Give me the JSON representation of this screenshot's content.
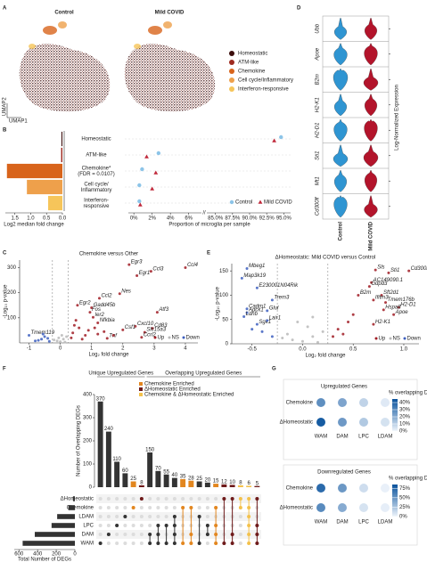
{
  "panels": [
    "A",
    "B",
    "C",
    "D",
    "E",
    "F",
    "G"
  ],
  "chart_data": [
    {
      "type": "umap",
      "titles": [
        "Control",
        "Mild COVID"
      ],
      "axis_labels": [
        "UMAP1",
        "UMAP2"
      ],
      "legend": [
        {
          "name": "Homeostatic",
          "color": "#3b0d0c"
        },
        {
          "name": "ATM-like",
          "color": "#9e2a1f"
        },
        {
          "name": "Chemokine",
          "color": "#d8641b"
        },
        {
          "name": "Cell cycle/Inflammatory",
          "color": "#eea04b"
        },
        {
          "name": "Interferon-responsive",
          "color": "#f6c55a"
        }
      ]
    },
    {
      "type": "hbar",
      "categories": [
        [
          "Homeostatic"
        ],
        [
          "ATM-like"
        ],
        [
          "Chemokine*",
          "(FDR = 0.0107)"
        ],
        [
          "Cell cycle/",
          "Inflammatory"
        ],
        [
          "Interferon-",
          "responsive"
        ]
      ],
      "values": [
        0.03,
        0.04,
        1.75,
        1.12,
        0.45
      ],
      "colors": [
        "#3b0d0c",
        "#9e2a1f",
        "#d8641b",
        "#eea04b",
        "#f6c55a"
      ],
      "label_colors": [
        "#222222",
        "#222222",
        "#d62828",
        "#222222",
        "#222222"
      ],
      "xlim": [
        1.8,
        0
      ],
      "xticks": [
        1.5,
        {
          "value": 1,
          "label": "1.0"
        },
        0.5,
        {
          "value": 0,
          "label": "0.0"
        }
      ],
      "xlabel": "Log2 median fold change"
    },
    {
      "type": "dot",
      "series": [
        {
          "name": "Control",
          "color": "#8cc4e8",
          "marker": "circle",
          "values": [
            94.6,
            2.7,
            0.9,
            0.6,
            0.6
          ]
        },
        {
          "name": "Mild COVID",
          "color": "#c0283a",
          "marker": "triangle",
          "values": [
            93.6,
            1.4,
            2.4,
            2.0,
            0.7
          ]
        }
      ],
      "xlim": [
        -0.6,
        7.2
      ],
      "xticks": [
        {
          "value": 0,
          "label": "0%"
        },
        {
          "value": 2,
          "label": "2%"
        },
        {
          "value": 4,
          "label": "4%"
        },
        {
          "value": 6,
          "label": "6%"
        }
      ],
      "xlim2": [
        84,
        96
      ],
      "xticks2": [
        {
          "value": 85,
          "label": "85.0%"
        },
        {
          "value": 87.5,
          "label": "87.5%"
        },
        {
          "value": 90,
          "label": "90.0%"
        },
        {
          "value": 92.5,
          "label": "92.5%"
        },
        {
          "value": 95,
          "label": "95.0%"
        }
      ],
      "xlabel": "Proportion of microglia per sample"
    },
    {
      "type": "volcano",
      "title": "Chemokine versus Other",
      "xlabel": "Log₂ fold change",
      "ylabel": "-Log₁₀ p-value",
      "xlim": [
        -1.3,
        4.4
      ],
      "xticks": [
        -1,
        0,
        1,
        2,
        3,
        4
      ],
      "ylim": [
        0,
        330
      ],
      "yticks": [
        100,
        200,
        300
      ],
      "fc_cutoffs": [
        -0.25,
        0.25
      ],
      "series": [
        {
          "name": "Up",
          "color": "#a01c24",
          "x": [
            4.0,
            2.9,
            2.2,
            2.45,
            1.9,
            1.25,
            0.55,
            1.0,
            0.95,
            3.1,
            1.05,
            1.2,
            2.4,
            2.0,
            2.95,
            2.7,
            2.6,
            1.5,
            0.4,
            0.6,
            0.8,
            0.5,
            0.9,
            1.2,
            0.35,
            0.7,
            1.4,
            1.7,
            0.45,
            1.1
          ],
          "y": [
            300,
            285,
            312,
            268,
            196,
            178,
            150,
            140,
            122,
            122,
            102,
            80,
            66,
            52,
            58,
            42,
            22,
            18,
            40,
            60,
            30,
            90,
            50,
            35,
            20,
            15,
            45,
            30,
            70,
            60
          ],
          "labels": [
            "Ccl4",
            "Ccl3",
            "Egr3",
            "Egr1",
            "Nes",
            "Ccl2",
            "Egr2",
            "Gadd45b",
            "Fos",
            "Atf3",
            "Ier2",
            "Nfkbia",
            "Cxcl10",
            "Csf1",
            "Cd83",
            "Slc15a3",
            "Ccrl2",
            "Tnf",
            null,
            null,
            null,
            null,
            null,
            null,
            null,
            null,
            null,
            null,
            null,
            null
          ]
        },
        {
          "name": "NS",
          "color": "#b8b8b8",
          "x": [
            0,
            0.1,
            -0.1,
            0.2,
            -0.2,
            0.05,
            0.15,
            -0.05
          ],
          "y": [
            5,
            15,
            8,
            25,
            12,
            30,
            3,
            20
          ],
          "labels": [
            null,
            null,
            null,
            null,
            null,
            null,
            null,
            null
          ]
        },
        {
          "name": "Down",
          "color": "#3d5fbf",
          "x": [
            -1.0,
            -0.6,
            -0.5,
            -0.7,
            -0.4,
            -0.8,
            -0.35,
            -0.55
          ],
          "y": [
            30,
            15,
            25,
            10,
            18,
            8,
            6,
            35
          ],
          "labels": [
            "Tmem119",
            null,
            null,
            null,
            null,
            null,
            null,
            null
          ]
        }
      ]
    },
    {
      "type": "volcano",
      "title": "ΔHomeostatic: Mild COVID versus Control",
      "xlabel": "Log₂ fold change",
      "ylabel": "-Log₁₀ p-value",
      "xlim": [
        -0.7,
        1.15
      ],
      "xticks": [
        -0.5,
        {
          "value": 0,
          "label": "0.0"
        },
        0.5,
        {
          "value": 1,
          "label": "1.0"
        }
      ],
      "ylim": [
        0,
        165
      ],
      "yticks": [
        0,
        50,
        100,
        150
      ],
      "fc_cutoffs": [
        -0.25,
        0.25
      ],
      "series": [
        {
          "name": "Up",
          "color": "#a01c24",
          "x": [
            0.72,
            0.85,
            1.05,
            0.68,
            0.66,
            0.55,
            0.78,
            0.82,
            0.9,
            0.95,
            0.7,
            0.8,
            0.7,
            0.35,
            0.45,
            0.4,
            0.3,
            0.5
          ],
          "y": [
            152,
            146,
            150,
            126,
            118,
            100,
            100,
            85,
            60,
            75,
            40,
            70,
            90,
            30,
            45,
            20,
            15,
            60
          ],
          "labels": [
            "Sls",
            "Sti1",
            "Cd300lf",
            "AC149090.1",
            "Gdpd3",
            "B2m",
            "Sft2d1",
            "Tmem176b",
            "Apoe",
            "H2-D1",
            "H2-K1",
            "Hspa8",
            "Ifitm3",
            null,
            null,
            null,
            null,
            null
          ]
        },
        {
          "name": "NS",
          "color": "#b8b8b8",
          "x": [
            0,
            0.1,
            -0.1,
            0.2,
            -0.2,
            0.05,
            0.15,
            -0.15,
            -0.05,
            0.1
          ],
          "y": [
            5,
            15,
            8,
            25,
            12,
            35,
            3,
            20,
            45,
            55
          ],
          "labels": [
            null,
            null,
            null,
            null,
            null,
            null,
            null,
            null,
            null,
            null
          ]
        },
        {
          "name": "Down",
          "color": "#3d5fbf",
          "x": [
            -0.55,
            -0.6,
            -0.45,
            -0.3,
            -0.55,
            -0.55,
            -0.58,
            -0.45,
            -0.35,
            -0.35,
            -0.4,
            -0.3,
            -0.5
          ],
          "y": [
            155,
            135,
            115,
            90,
            72,
            64,
            56,
            40,
            68,
            48,
            25,
            15,
            30
          ],
          "labels": [
            "Mbeg1",
            "Map3k19",
            "E230001N04Rik",
            "Trem3",
            "Cadm1",
            "Adck1",
            "Ldhb",
            "Sgk1",
            "Glul",
            "Lair1",
            null,
            null,
            null
          ]
        }
      ]
    },
    {
      "type": "violin",
      "genes": [
        "Ubb",
        "Apoe",
        "B2m",
        "H2-K1",
        "H2-D1",
        "Sti1",
        "Mt1",
        "Cd300lf"
      ],
      "groups": [
        "Control",
        "Mild COVID"
      ],
      "colors": [
        "#2f95d2",
        "#b3142b"
      ],
      "ylabel": "Log-Normalized Expression"
    },
    {
      "type": "upset",
      "headers": [
        "Unique Upregulated Genes",
        "Overlapping Upregulated Genes"
      ],
      "legend": [
        {
          "name": "Chemokine Enriched",
          "color": "#e2861f"
        },
        {
          "name": "ΔHomeostatic Enriched",
          "color": "#6e1a1a"
        },
        {
          "name": "Chemokine & ΔHomeostatic Enriched",
          "color": "#f3c14b"
        }
      ],
      "sets": [
        "ΔHomeostatic",
        "Chemokine",
        "LDAM",
        "LPC",
        "DAM",
        "WAM"
      ],
      "set_sizes": [
        20,
        70,
        190,
        250,
        430,
        560
      ],
      "set_xlim": [
        650,
        0
      ],
      "set_xticks": [
        600,
        400,
        200,
        0
      ],
      "set_xlabel": "Total Number of DEGs",
      "values": [
        370,
        240,
        110,
        60,
        25,
        8,
        150,
        70,
        55,
        40,
        35,
        28,
        25,
        20,
        15,
        12,
        10,
        8,
        6,
        5
      ],
      "colors": [
        "#333333",
        "#333333",
        "#333333",
        "#333333",
        "#e2861f",
        "#6e1a1a",
        "#333333",
        "#333333",
        "#333333",
        "#333333",
        "#e2861f",
        "#e2861f",
        "#333333",
        "#333333",
        "#e2861f",
        "#6e1a1a",
        "#6e1a1a",
        "#f3c14b",
        "#f3c14b",
        "#6e1a1a"
      ],
      "combos": [
        [
          5
        ],
        [
          4
        ],
        [
          3
        ],
        [
          2
        ],
        [
          1
        ],
        [
          0
        ],
        [
          4,
          5
        ],
        [
          3,
          4,
          5
        ],
        [
          3,
          5
        ],
        [
          2,
          3,
          4,
          5
        ],
        [
          1,
          5
        ],
        [
          1,
          4,
          5
        ],
        [
          2,
          5
        ],
        [
          3,
          4
        ],
        [
          1,
          3,
          4,
          5
        ],
        [
          0,
          5
        ],
        [
          0,
          4,
          5
        ],
        [
          0,
          1
        ],
        [
          0,
          1,
          2,
          3,
          4,
          5
        ],
        [
          0,
          3,
          4,
          5
        ]
      ],
      "ylim": [
        0,
        400
      ],
      "yticks": [
        0,
        100,
        200,
        300,
        400
      ],
      "ylabel": "Number of Overlapping DEGs"
    },
    {
      "type": "dotmatrix",
      "title": "Upregulated Genes",
      "rows": [
        "Chemokine",
        "ΔHomeostatic"
      ],
      "columns": [
        "WAM",
        "DAM",
        "LPC",
        "LDAM"
      ],
      "values": [
        [
          28,
          22,
          9,
          3
        ],
        [
          42,
          25,
          12,
          5
        ]
      ],
      "legend_title": "% overlapping DEGs",
      "clim": [
        0,
        45
      ],
      "cticks": [
        {
          "value": 0,
          "label": "0%"
        },
        {
          "value": 10,
          "label": "10%"
        },
        {
          "value": 20,
          "label": "20%"
        },
        {
          "value": 30,
          "label": "30%"
        },
        {
          "value": 40,
          "label": "40%"
        }
      ],
      "colors": [
        "#eef4fb",
        "#08519c"
      ]
    },
    {
      "type": "dotmatrix",
      "title": "Downregulated Genes",
      "rows": [
        "Chemokine",
        "ΔHomeostatic"
      ],
      "columns": [
        "WAM",
        "DAM",
        "LPC",
        "LDAM"
      ],
      "values": [
        [
          72,
          48,
          12,
          2
        ],
        [
          55,
          38,
          9,
          3
        ]
      ],
      "legend_title": "% overlapping DEGs",
      "clim": [
        0,
        85
      ],
      "cticks": [
        {
          "value": 0,
          "label": "0%"
        },
        {
          "value": 25,
          "label": "25%"
        },
        {
          "value": 50,
          "label": "50%"
        },
        {
          "value": 75,
          "label": "75%"
        }
      ],
      "colors": [
        "#eef4fb",
        "#08519c"
      ]
    }
  ]
}
